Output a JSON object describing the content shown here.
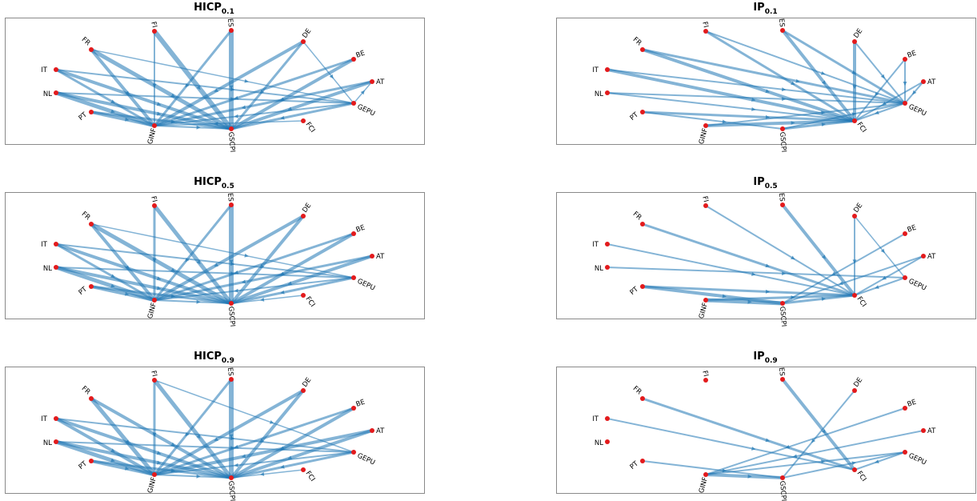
{
  "nodes": [
    "IT",
    "FR",
    "FI",
    "ES",
    "DE",
    "BE",
    "AT",
    "GEPU",
    "FCI",
    "GSCPI",
    "GINF",
    "PT",
    "NL"
  ],
  "panels": [
    {
      "id": "hicp-01",
      "title_main": "HICP",
      "title_sub": "0.1",
      "hub": "GINF",
      "hub2": "GSCPI",
      "edges": [
        [
          "IT",
          "GINF",
          3
        ],
        [
          "IT",
          "GSCPI",
          4
        ],
        [
          "IT",
          "GEPU",
          2
        ],
        [
          "FR",
          "GINF",
          4
        ],
        [
          "FR",
          "GSCPI",
          5
        ],
        [
          "FR",
          "GEPU",
          1.5
        ],
        [
          "FI",
          "GINF",
          2
        ],
        [
          "FI",
          "GSCPI",
          6
        ],
        [
          "ES",
          "GINF",
          3
        ],
        [
          "ES",
          "GSCPI",
          6
        ],
        [
          "DE",
          "GINF",
          4
        ],
        [
          "DE",
          "GSCPI",
          3
        ],
        [
          "DE",
          "GEPU",
          1.5
        ],
        [
          "BE",
          "GINF",
          3
        ],
        [
          "BE",
          "GSCPI",
          4
        ],
        [
          "AT",
          "GINF",
          3
        ],
        [
          "AT",
          "GSCPI",
          4
        ],
        [
          "GEPU",
          "GINF",
          2
        ],
        [
          "GEPU",
          "GSCPI",
          3
        ],
        [
          "GEPU",
          "AT",
          1.5
        ],
        [
          "FCI",
          "GINF",
          1.5
        ],
        [
          "PT",
          "GINF",
          4
        ],
        [
          "PT",
          "GSCPI",
          3
        ],
        [
          "NL",
          "GINF",
          5
        ],
        [
          "NL",
          "GSCPI",
          4
        ],
        [
          "NL",
          "GEPU",
          2
        ],
        [
          "GINF",
          "GSCPI",
          2
        ]
      ]
    },
    {
      "id": "ip-01",
      "title_main": "IP",
      "title_sub": "0.1",
      "edges": [
        [
          "FR",
          "FCI",
          4
        ],
        [
          "FR",
          "GEPU",
          3
        ],
        [
          "FI",
          "FCI",
          3
        ],
        [
          "FI",
          "GEPU",
          2
        ],
        [
          "ES",
          "FCI",
          4
        ],
        [
          "ES",
          "GEPU",
          3
        ],
        [
          "DE",
          "FCI",
          4
        ],
        [
          "DE",
          "GEPU",
          2
        ],
        [
          "BE",
          "FCI",
          2
        ],
        [
          "BE",
          "GEPU",
          2
        ],
        [
          "AT",
          "FCI",
          2
        ],
        [
          "AT",
          "GEPU",
          2
        ],
        [
          "IT",
          "FCI",
          4
        ],
        [
          "IT",
          "GEPU",
          2
        ],
        [
          "NL",
          "FCI",
          2
        ],
        [
          "NL",
          "GEPU",
          2
        ],
        [
          "PT",
          "FCI",
          3
        ],
        [
          "PT",
          "GSCPI",
          2
        ],
        [
          "GINF",
          "FCI",
          4
        ],
        [
          "GINF",
          "GEPU",
          2
        ],
        [
          "GSCPI",
          "FCI",
          3
        ],
        [
          "GSCPI",
          "GEPU",
          2
        ],
        [
          "GEPU",
          "FCI",
          2
        ]
      ]
    },
    {
      "id": "hicp-05",
      "title_main": "HICP",
      "title_sub": "0.5",
      "edges": [
        [
          "IT",
          "GINF",
          3
        ],
        [
          "IT",
          "GSCPI",
          4
        ],
        [
          "IT",
          "GEPU",
          2
        ],
        [
          "FR",
          "GINF",
          4
        ],
        [
          "FR",
          "GSCPI",
          5
        ],
        [
          "FR",
          "GEPU",
          1.5
        ],
        [
          "FI",
          "GINF",
          3
        ],
        [
          "FI",
          "GSCPI",
          5
        ],
        [
          "ES",
          "GINF",
          3
        ],
        [
          "ES",
          "GSCPI",
          6
        ],
        [
          "DE",
          "GINF",
          4
        ],
        [
          "DE",
          "GSCPI",
          4
        ],
        [
          "BE",
          "GINF",
          3
        ],
        [
          "BE",
          "GSCPI",
          4
        ],
        [
          "AT",
          "GINF",
          3
        ],
        [
          "AT",
          "GSCPI",
          4
        ],
        [
          "GEPU",
          "GINF",
          2
        ],
        [
          "GEPU",
          "GSCPI",
          3
        ],
        [
          "FCI",
          "GSCPI",
          1.5
        ],
        [
          "PT",
          "GINF",
          4
        ],
        [
          "PT",
          "GSCPI",
          3
        ],
        [
          "NL",
          "GINF",
          5
        ],
        [
          "NL",
          "GSCPI",
          4
        ],
        [
          "NL",
          "GEPU",
          2
        ],
        [
          "GINF",
          "GSCPI",
          2
        ]
      ]
    },
    {
      "id": "ip-05",
      "title_main": "IP",
      "title_sub": "0.5",
      "edges": [
        [
          "FR",
          "FCI",
          3
        ],
        [
          "FI",
          "FCI",
          2
        ],
        [
          "ES",
          "FCI",
          4
        ],
        [
          "DE",
          "FCI",
          2
        ],
        [
          "DE",
          "GEPU",
          1.5
        ],
        [
          "BE",
          "GSCPI",
          2
        ],
        [
          "AT",
          "FCI",
          2
        ],
        [
          "AT",
          "GSCPI",
          2
        ],
        [
          "IT",
          "FCI",
          2
        ],
        [
          "NL",
          "GEPU",
          2
        ],
        [
          "PT",
          "GSCPI",
          4
        ],
        [
          "PT",
          "FCI",
          3
        ],
        [
          "GINF",
          "FCI",
          3
        ],
        [
          "GINF",
          "GSCPI",
          5
        ],
        [
          "GSCPI",
          "FCI",
          3
        ],
        [
          "GEPU",
          "FCI",
          2
        ]
      ]
    },
    {
      "id": "hicp-09",
      "title_main": "HICP",
      "title_sub": "0.9",
      "edges": [
        [
          "IT",
          "GINF",
          4
        ],
        [
          "IT",
          "GSCPI",
          4
        ],
        [
          "IT",
          "GEPU",
          2
        ],
        [
          "FR",
          "GINF",
          5
        ],
        [
          "FR",
          "GSCPI",
          4
        ],
        [
          "FI",
          "GINF",
          3
        ],
        [
          "FI",
          "GSCPI",
          5
        ],
        [
          "FI",
          "GEPU",
          1.5
        ],
        [
          "ES",
          "GINF",
          3
        ],
        [
          "ES",
          "GSCPI",
          6
        ],
        [
          "DE",
          "GINF",
          4
        ],
        [
          "DE",
          "GSCPI",
          4
        ],
        [
          "BE",
          "GINF",
          3
        ],
        [
          "BE",
          "GSCPI",
          4
        ],
        [
          "AT",
          "GINF",
          4
        ],
        [
          "AT",
          "GSCPI",
          4
        ],
        [
          "GEPU",
          "GINF",
          2
        ],
        [
          "GEPU",
          "GSCPI",
          3
        ],
        [
          "FCI",
          "GSCPI",
          1.5
        ],
        [
          "PT",
          "GINF",
          4
        ],
        [
          "PT",
          "GSCPI",
          3
        ],
        [
          "NL",
          "GINF",
          5
        ],
        [
          "NL",
          "GSCPI",
          4
        ],
        [
          "NL",
          "GEPU",
          2
        ],
        [
          "GINF",
          "GSCPI",
          2
        ]
      ]
    },
    {
      "id": "ip-09",
      "title_main": "IP",
      "title_sub": "0.9",
      "edges": [
        [
          "FR",
          "FCI",
          3
        ],
        [
          "ES",
          "FCI",
          4
        ],
        [
          "DE",
          "GSCPI",
          2
        ],
        [
          "BE",
          "GINF",
          2
        ],
        [
          "AT",
          "GINF",
          2
        ],
        [
          "IT",
          "FCI",
          2
        ],
        [
          "PT",
          "GSCPI",
          2
        ],
        [
          "GINF",
          "GSCPI",
          4
        ],
        [
          "GINF",
          "GEPU",
          2
        ],
        [
          "GSCPI",
          "GEPU",
          2
        ],
        [
          "GEPU",
          "FCI",
          2
        ]
      ]
    }
  ]
}
